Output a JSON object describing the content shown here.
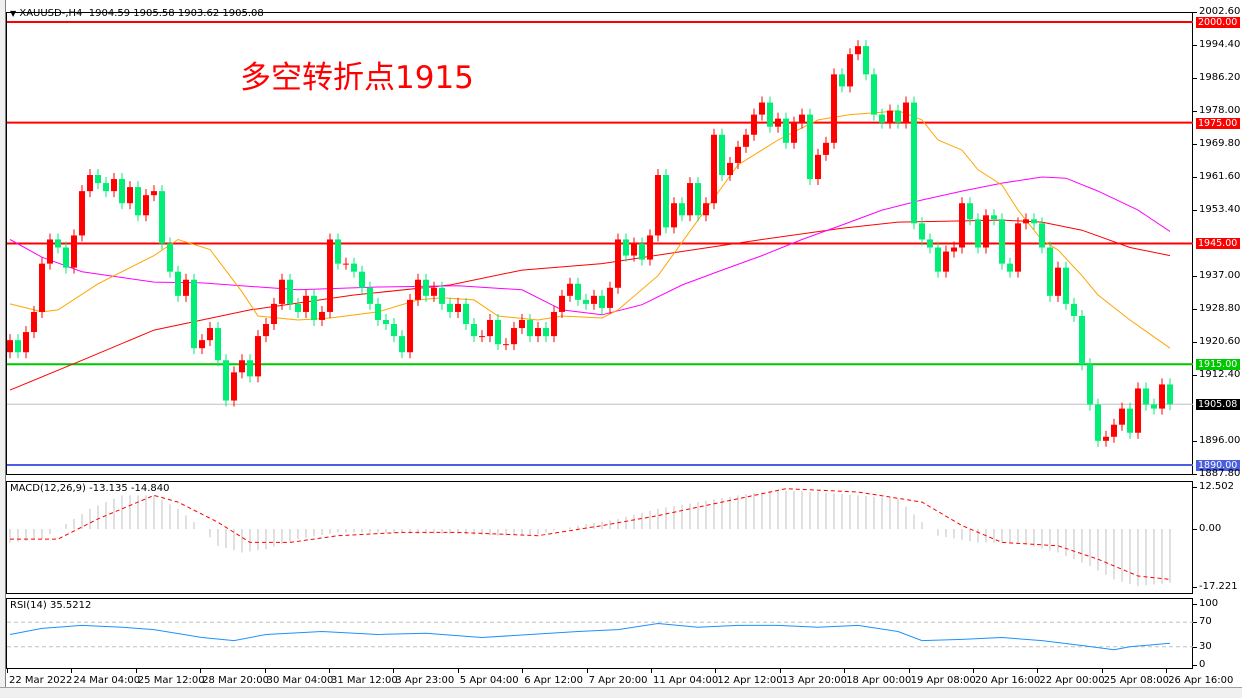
{
  "header": {
    "symbol": "XAUUSD-,H4",
    "open": "1904.59",
    "high": "1905.58",
    "low": "1903.62",
    "close": "1905.08"
  },
  "annotation": "多空转折点1915",
  "price_axis": [
    "2002.60",
    "1994.40",
    "1986.20",
    "1978.00",
    "1969.80",
    "1961.60",
    "1953.40",
    "1937.00",
    "1928.80",
    "1920.60",
    "1912.40",
    "1896.00",
    "1887.80"
  ],
  "levels": [
    {
      "label": "2000.00",
      "value": 2000,
      "color": "#ff0000"
    },
    {
      "label": "1975.00",
      "value": 1975,
      "color": "#ff0000"
    },
    {
      "label": "1945.00",
      "value": 1945,
      "color": "#ff0000"
    },
    {
      "label": "1915.00",
      "value": 1915,
      "color": "#00c800"
    },
    {
      "label": "1890.00",
      "value": 1890,
      "color": "#4a5ee0"
    }
  ],
  "current_price": {
    "label": "1905.08",
    "value": 1905.08,
    "color": "#000000"
  },
  "time_axis": [
    "22 Mar 2022",
    "24 Mar 04:00",
    "25 Mar 12:00",
    "28 Mar 20:00",
    "30 Mar 04:00",
    "31 Mar 12:00",
    "3 Apr 23:00",
    "5 Apr 04:00",
    "6 Apr 12:00",
    "7 Apr 20:00",
    "11 Apr 04:00",
    "12 Apr 12:00",
    "13 Apr 20:00",
    "18 Apr 00:00",
    "19 Apr 08:00",
    "20 Apr 16:00",
    "22 Apr 00:00",
    "25 Apr 08:00",
    "26 Apr 16:00"
  ],
  "macd": {
    "title": "MACD(12,26,9) -13.135 -14.840",
    "axis": [
      "12.502",
      "0.00",
      "-17.221"
    ],
    "max": 12.502,
    "min": -17.221
  },
  "rsi": {
    "title": "RSI(14) 35.5212",
    "axis": [
      "100",
      "70",
      "30",
      "0"
    ],
    "levels": [
      70,
      30
    ]
  },
  "chart_data": {
    "type": "candlestick",
    "colors": {
      "up": "#ff0000",
      "down": "#00ee76",
      "ma_fast": "#ffa500",
      "ma_mid": "#ff00ff",
      "ma_slow": "#ff0000",
      "macd_hist": "#c0c0c0",
      "macd_signal": "#ff0000",
      "rsi": "#1e90ff"
    },
    "ylim": [
      1887.8,
      2002.6
    ],
    "first_open": 1918,
    "close": [
      1921,
      1918,
      1923,
      1928,
      1940,
      1946,
      1944,
      1939,
      1947,
      1958,
      1962,
      1960,
      1958,
      1961,
      1955,
      1959,
      1952,
      1957,
      1958,
      1945,
      1938,
      1932,
      1936,
      1919,
      1921,
      1924,
      1916,
      1906,
      1913,
      1916,
      1912,
      1922,
      1925,
      1930,
      1936,
      1930,
      1928,
      1932,
      1926,
      1928,
      1946,
      1940,
      1940,
      1938,
      1934,
      1930,
      1926,
      1925,
      1922,
      1918,
      1931,
      1936,
      1932,
      1934,
      1930,
      1928,
      1930,
      1925,
      1922,
      1922,
      1926,
      1920,
      1920,
      1924,
      1926,
      1922,
      1924,
      1922,
      1928,
      1932,
      1935,
      1931,
      1930,
      1932,
      1929,
      1934,
      1946,
      1942,
      1945,
      1941,
      1947,
      1962,
      1949,
      1955,
      1952,
      1960,
      1952,
      1955,
      1972,
      1962,
      1965,
      1969,
      1972,
      1977,
      1980,
      1974,
      1976,
      1970,
      1975,
      1977,
      1961,
      1967,
      1970,
      1987,
      1984,
      1992,
      1994,
      1987,
      1977,
      1975,
      1978,
      1975,
      1980,
      1950,
      1946,
      1944,
      1938,
      1943,
      1944,
      1955,
      1951,
      1944,
      1952,
      1951,
      1940,
      1938,
      1950,
      1951,
      1950,
      1944,
      1932,
      1939,
      1930,
      1927,
      1915,
      1905,
      1896,
      1897,
      1900,
      1904,
      1898,
      1909,
      1905,
      1904,
      1910,
      1905.08
    ],
    "ma_fast": [
      [
        0,
        1930
      ],
      [
        4,
        1928
      ],
      [
        6,
        1928.5
      ],
      [
        11,
        1935
      ],
      [
        18,
        1942
      ],
      [
        21,
        1946
      ],
      [
        25,
        1943.5
      ],
      [
        29,
        1933
      ],
      [
        31,
        1927
      ],
      [
        36,
        1926
      ],
      [
        40,
        1926.5
      ],
      [
        46,
        1928
      ],
      [
        51,
        1931
      ],
      [
        54,
        1931.5
      ],
      [
        58,
        1931
      ],
      [
        61,
        1927
      ],
      [
        66,
        1926
      ],
      [
        69,
        1927
      ],
      [
        74,
        1926.5
      ],
      [
        76,
        1928.5
      ],
      [
        81,
        1937
      ],
      [
        86,
        1950.8
      ],
      [
        91,
        1964.5
      ],
      [
        96,
        1970.7
      ],
      [
        101,
        1975.7
      ],
      [
        105,
        1977
      ],
      [
        109,
        1977.6
      ],
      [
        111,
        1978
      ],
      [
        114,
        1975.7
      ],
      [
        116,
        1970.7
      ],
      [
        119,
        1968.2
      ],
      [
        121,
        1963.3
      ],
      [
        124,
        1959.5
      ],
      [
        126,
        1953.3
      ],
      [
        129,
        1945.8
      ],
      [
        131,
        1943.4
      ],
      [
        134,
        1937
      ],
      [
        136,
        1932.2
      ],
      [
        140,
        1926
      ],
      [
        145,
        1919
      ]
    ],
    "ma_mid": [
      [
        0,
        1946
      ],
      [
        4,
        1941.6
      ],
      [
        9,
        1938
      ],
      [
        18,
        1935.4
      ],
      [
        24,
        1935.2
      ],
      [
        36,
        1933.5
      ],
      [
        46,
        1934.2
      ],
      [
        56,
        1934.5
      ],
      [
        64,
        1933.5
      ],
      [
        69,
        1928.5
      ],
      [
        74,
        1927.3
      ],
      [
        79,
        1929.8
      ],
      [
        84,
        1934.7
      ],
      [
        89,
        1938.4
      ],
      [
        94,
        1942
      ],
      [
        99,
        1946
      ],
      [
        104,
        1949.6
      ],
      [
        109,
        1953.3
      ],
      [
        114,
        1955.8
      ],
      [
        119,
        1958
      ],
      [
        124,
        1960
      ],
      [
        129,
        1961.5
      ],
      [
        132,
        1961.2
      ],
      [
        136,
        1958
      ],
      [
        141,
        1953.3
      ],
      [
        145,
        1948
      ]
    ],
    "ma_slow": [
      [
        0,
        1908.6
      ],
      [
        9,
        1916
      ],
      [
        18,
        1923.5
      ],
      [
        30,
        1928.5
      ],
      [
        43,
        1932.2
      ],
      [
        55,
        1934.7
      ],
      [
        64,
        1938.4
      ],
      [
        74,
        1940
      ],
      [
        84,
        1943
      ],
      [
        94,
        1946
      ],
      [
        104,
        1948.8
      ],
      [
        111,
        1950.3
      ],
      [
        124,
        1950.8
      ],
      [
        129,
        1950.3
      ],
      [
        134,
        1948.3
      ],
      [
        140,
        1944
      ],
      [
        145,
        1942
      ]
    ],
    "macd_main": [
      [
        0,
        -4
      ],
      [
        4,
        -3
      ],
      [
        6,
        0
      ],
      [
        10,
        6
      ],
      [
        14,
        10
      ],
      [
        18,
        10
      ],
      [
        21,
        6
      ],
      [
        24,
        0
      ],
      [
        26,
        -5
      ],
      [
        29,
        -7
      ],
      [
        32,
        -6
      ],
      [
        36,
        -3
      ],
      [
        41,
        -1
      ],
      [
        46,
        -1
      ],
      [
        51,
        -1.5
      ],
      [
        56,
        -1.5
      ],
      [
        61,
        -2
      ],
      [
        66,
        -1.5
      ],
      [
        71,
        1
      ],
      [
        76,
        3
      ],
      [
        81,
        6
      ],
      [
        86,
        8
      ],
      [
        91,
        10
      ],
      [
        96,
        11.5
      ],
      [
        101,
        11
      ],
      [
        106,
        10
      ],
      [
        111,
        9
      ],
      [
        114,
        2
      ],
      [
        116,
        -2
      ],
      [
        121,
        -4
      ],
      [
        126,
        -4
      ],
      [
        131,
        -7
      ],
      [
        135,
        -11
      ],
      [
        138,
        -15
      ],
      [
        141,
        -17
      ],
      [
        145,
        -16
      ]
    ],
    "macd_signal": [
      [
        0,
        -3
      ],
      [
        6,
        -3
      ],
      [
        11,
        3
      ],
      [
        18,
        10
      ],
      [
        21,
        8
      ],
      [
        26,
        2
      ],
      [
        30,
        -4
      ],
      [
        35,
        -4
      ],
      [
        41,
        -2
      ],
      [
        49,
        -1
      ],
      [
        56,
        -1
      ],
      [
        66,
        -2
      ],
      [
        74,
        1
      ],
      [
        81,
        4
      ],
      [
        89,
        8
      ],
      [
        97,
        12
      ],
      [
        106,
        11
      ],
      [
        114,
        8
      ],
      [
        119,
        1
      ],
      [
        124,
        -4
      ],
      [
        131,
        -5
      ],
      [
        136,
        -9
      ],
      [
        141,
        -14
      ],
      [
        145,
        -15
      ]
    ],
    "rsi_values": [
      [
        0,
        50
      ],
      [
        4,
        60
      ],
      [
        9,
        65
      ],
      [
        14,
        62
      ],
      [
        18,
        58
      ],
      [
        24,
        45
      ],
      [
        28,
        40
      ],
      [
        32,
        50
      ],
      [
        39,
        55
      ],
      [
        46,
        50
      ],
      [
        52,
        52
      ],
      [
        59,
        45
      ],
      [
        65,
        50
      ],
      [
        71,
        55
      ],
      [
        76,
        58
      ],
      [
        81,
        68
      ],
      [
        86,
        62
      ],
      [
        91,
        65
      ],
      [
        96,
        65
      ],
      [
        101,
        62
      ],
      [
        106,
        65
      ],
      [
        111,
        55
      ],
      [
        114,
        40
      ],
      [
        119,
        42
      ],
      [
        124,
        45
      ],
      [
        129,
        40
      ],
      [
        134,
        32
      ],
      [
        138,
        25
      ],
      [
        140,
        30
      ],
      [
        145,
        35.52
      ]
    ]
  }
}
